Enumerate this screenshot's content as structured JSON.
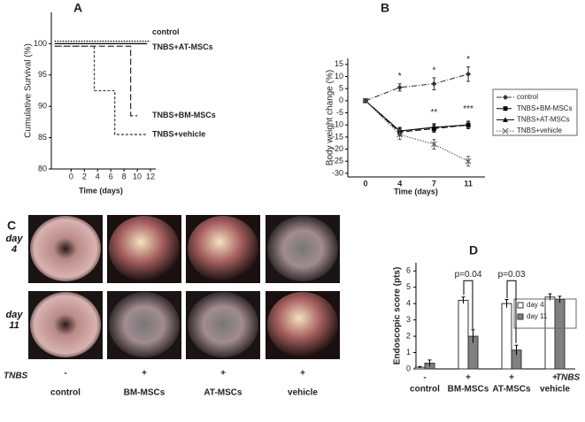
{
  "chart_data": [
    {
      "type": "step",
      "title": "A",
      "xlabel": "Time (days)",
      "ylabel": "Cumulative Survival (%)",
      "xlim": [
        -3,
        12
      ],
      "xticks": [
        0,
        2,
        4,
        6,
        8,
        10,
        12
      ],
      "ylim": [
        80,
        105
      ],
      "yticks": [
        80,
        85,
        90,
        95,
        100
      ],
      "series": [
        {
          "name": "control",
          "color": "#000000",
          "dash": "dotted",
          "x": [
            -2.5,
            12
          ],
          "values": [
            100.4,
            100.4
          ]
        },
        {
          "name": "TNBS+AT-MSCs",
          "color": "#000000",
          "dash": "solid",
          "x": [
            -2.5,
            11.5
          ],
          "values": [
            100,
            100
          ]
        },
        {
          "name": "TNBS+BM-MSCs",
          "color": "#333333",
          "dash": "dashed",
          "x": [
            -2.5,
            9,
            10
          ],
          "values": [
            99.6,
            88.5,
            88.5
          ]
        },
        {
          "name": "TNBS+vehicle",
          "color": "#444444",
          "dash": "short",
          "x": [
            -2.5,
            3.5,
            6.6,
            11.3
          ],
          "values": [
            99.6,
            92.5,
            85.5,
            85.5
          ]
        }
      ]
    },
    {
      "type": "line",
      "title": "B",
      "xlabel": "Time (days)",
      "ylabel": "Body weight change (%)",
      "categories": [
        "0",
        "4",
        "7",
        "11"
      ],
      "ylim": [
        -31.5,
        17.5
      ],
      "yticks": [
        -30,
        -25,
        -20,
        -15,
        -10,
        -5,
        0,
        5,
        10,
        15
      ],
      "series": [
        {
          "name": "control",
          "color": "#333333",
          "dash": "dashdot",
          "marker": "diamond",
          "values": [
            0,
            5.5,
            7,
            11
          ],
          "errors": [
            0,
            1.5,
            2.5,
            3
          ]
        },
        {
          "name": "TNBS+BM-MSCs",
          "color": "#000000",
          "dash": "dashed",
          "marker": "square",
          "values": [
            0,
            -13,
            -11.5,
            -10
          ],
          "errors": [
            0,
            1.5,
            1.5,
            1.5
          ]
        },
        {
          "name": "TNBS+AT-MSCs",
          "color": "#000000",
          "dash": "solid",
          "marker": "triangle",
          "values": [
            0,
            -12.5,
            -11,
            -10
          ],
          "errors": [
            0,
            1.5,
            1.5,
            1.5
          ]
        },
        {
          "name": "TNBS+vehicle",
          "color": "#555555",
          "dash": "dotted",
          "marker": "x",
          "values": [
            0,
            -14,
            -18,
            -25
          ],
          "errors": [
            0,
            2,
            2,
            2
          ]
        }
      ],
      "annotations": [
        {
          "text": "*",
          "category": 1,
          "y": 10
        },
        {
          "text": "*",
          "category": 2,
          "y": 12.5
        },
        {
          "text": "*",
          "category": 3,
          "y": 17
        },
        {
          "text": "**",
          "category": 2,
          "y": -5
        },
        {
          "text": "***",
          "category": 3,
          "y": -3.5
        }
      ]
    },
    {
      "type": "bar",
      "title": "D",
      "ylabel": "Endoscopic score (pts)",
      "categories": [
        "control",
        "BM-MSCs",
        "AT-MSCs",
        "vehicle"
      ],
      "ylim": [
        0,
        6.5
      ],
      "yticks": [
        0,
        1,
        2,
        3,
        4,
        5,
        6
      ],
      "group_label": "TNBS",
      "group": [
        "-",
        "+",
        "+",
        "+"
      ],
      "series": [
        {
          "name": "day 4",
          "color": "#ffffff",
          "values": [
            0.1,
            4.2,
            4.0,
            4.4
          ],
          "errors": [
            0.05,
            0.2,
            0.25,
            0.2
          ]
        },
        {
          "name": "day 11",
          "color": "#808080",
          "values": [
            0.35,
            2.0,
            1.15,
            4.25
          ],
          "errors": [
            0.2,
            0.4,
            0.3,
            0.2
          ]
        }
      ],
      "annotations": [
        {
          "text": "p=0.04",
          "category": 1,
          "y": 5.4
        },
        {
          "text": "p=0.03",
          "category": 2,
          "y": 5.4
        }
      ]
    }
  ],
  "panel_c": {
    "title": "C",
    "rows": [
      "day 4",
      "day 11"
    ],
    "columns": [
      "control",
      "BM-MSCs",
      "AT-MSCs",
      "vehicle"
    ],
    "tnbs_label": "TNBS",
    "tnbs": [
      "-",
      "+",
      "+",
      "+"
    ]
  }
}
